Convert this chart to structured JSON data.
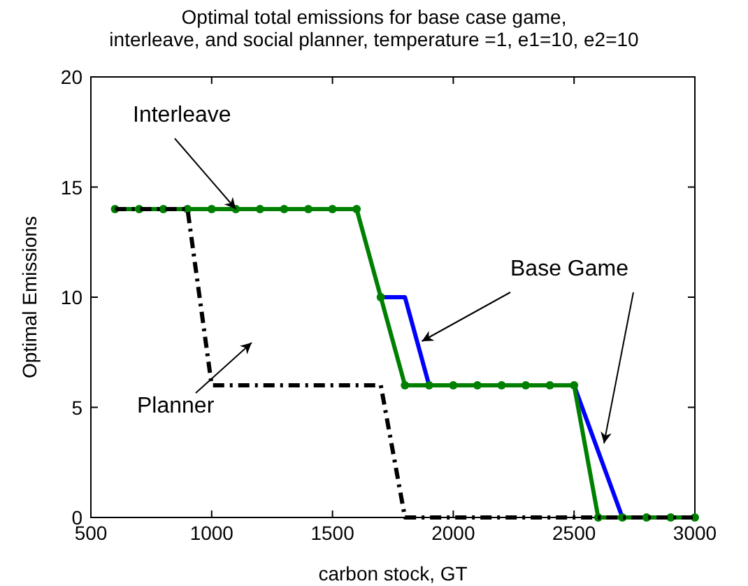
{
  "chart_data": {
    "type": "line",
    "title": "Optimal total emissions for base case game,\ninterleave, and  social planner, temperature =1, e1=10, e2=10",
    "xlabel": "carbon stock, GT",
    "ylabel": "Optimal Emissions",
    "x": [
      600,
      700,
      800,
      900,
      1000,
      1100,
      1200,
      1300,
      1400,
      1500,
      1600,
      1700,
      1800,
      1900,
      2000,
      2100,
      2200,
      2300,
      2400,
      2500,
      2600,
      2700,
      2800,
      2900,
      3000
    ],
    "series": [
      {
        "color": "#0000ff",
        "marker": "none",
        "line_style": "solid",
        "values": [
          null,
          null,
          null,
          null,
          null,
          null,
          null,
          null,
          null,
          null,
          null,
          10,
          10,
          6,
          null,
          null,
          null,
          null,
          null,
          6,
          3,
          0,
          null,
          null,
          null
        ]
      },
      {
        "color": "#008000",
        "marker": "circle",
        "line_style": "solid",
        "values": [
          14,
          14,
          14,
          14,
          14,
          14,
          14,
          14,
          14,
          14,
          14,
          10,
          6,
          6,
          6,
          6,
          6,
          6,
          6,
          6,
          0,
          0,
          0,
          0,
          0
        ]
      },
      {
        "color": "#000000",
        "marker": "none",
        "line_style": "dashdot",
        "values": [
          14,
          14,
          14,
          14,
          6,
          6,
          6,
          6,
          6,
          6,
          6,
          6,
          0,
          0,
          0,
          0,
          0,
          0,
          0,
          0,
          0,
          0,
          0,
          0,
          0
        ]
      }
    ],
    "annotations": [
      {
        "text": "Interleave",
        "x": 1100,
        "y": 14
      },
      {
        "text": "Base Game",
        "x": 1870,
        "y": 8
      },
      "Planner"
    ],
    "xlim": [
      500,
      3000
    ],
    "ylim": [
      0,
      20
    ],
    "xticks": [
      500,
      1000,
      1500,
      2000,
      2500,
      3000
    ],
    "yticks": [
      0,
      5,
      10,
      15,
      20
    ],
    "grid": false
  }
}
